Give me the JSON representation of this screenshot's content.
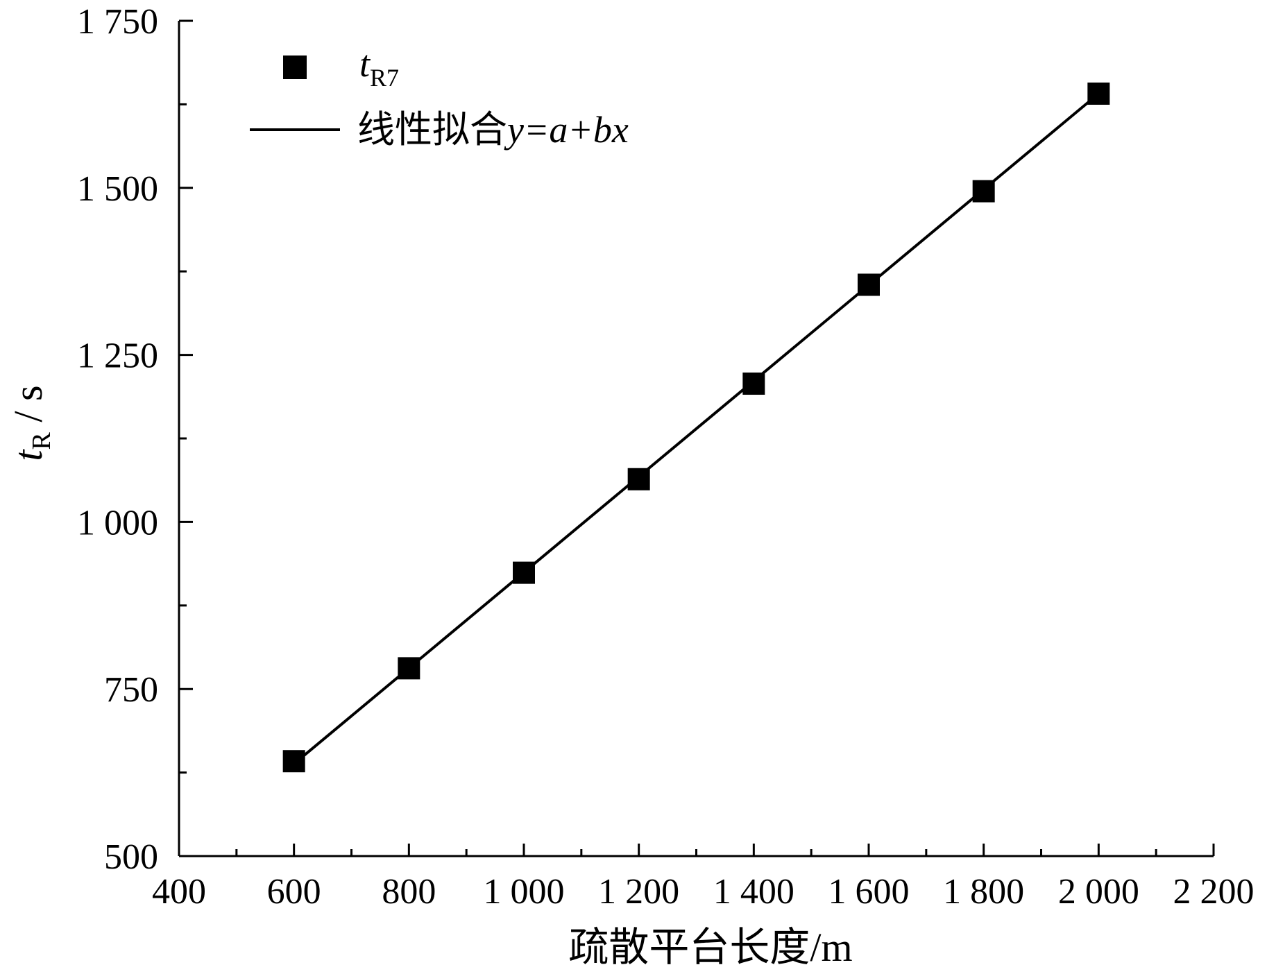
{
  "chart_data": {
    "type": "scatter",
    "xlabel": "疏散平台长度/m",
    "ylabel": {
      "main": "t",
      "sub": "R",
      "unit": " / s"
    },
    "xlim": [
      400,
      2200
    ],
    "ylim": [
      500,
      1750
    ],
    "x_ticks": [
      400,
      600,
      800,
      1000,
      1200,
      1400,
      1600,
      1800,
      2000,
      2200
    ],
    "x_tick_labels": [
      "400",
      "600",
      "800",
      "1 000",
      "1 200",
      "1 400",
      "1 600",
      "1 800",
      "2 000",
      "2 200"
    ],
    "y_ticks": [
      500,
      750,
      1000,
      1250,
      1500,
      1750
    ],
    "y_tick_labels": [
      "500",
      "750",
      "1 000",
      "1 250",
      "1 500",
      "1 750"
    ],
    "series": [
      {
        "name": "tR7",
        "marker": "square",
        "x": [
          600,
          800,
          1000,
          1200,
          1400,
          1600,
          1800,
          2000
        ],
        "y": [
          642,
          781,
          924,
          1064,
          1207,
          1355,
          1495,
          1641
        ]
      }
    ],
    "fit": {
      "name": "线性拟合y=a+bx",
      "x": [
        600,
        2000
      ],
      "y": [
        638,
        1641
      ]
    },
    "legend": {
      "position": "top-left",
      "entries": [
        {
          "main": "t",
          "sub": "R7"
        },
        {
          "prefix": "线性拟合",
          "formula": "y=a+bx"
        }
      ]
    },
    "grid": false,
    "color": "#000000"
  }
}
